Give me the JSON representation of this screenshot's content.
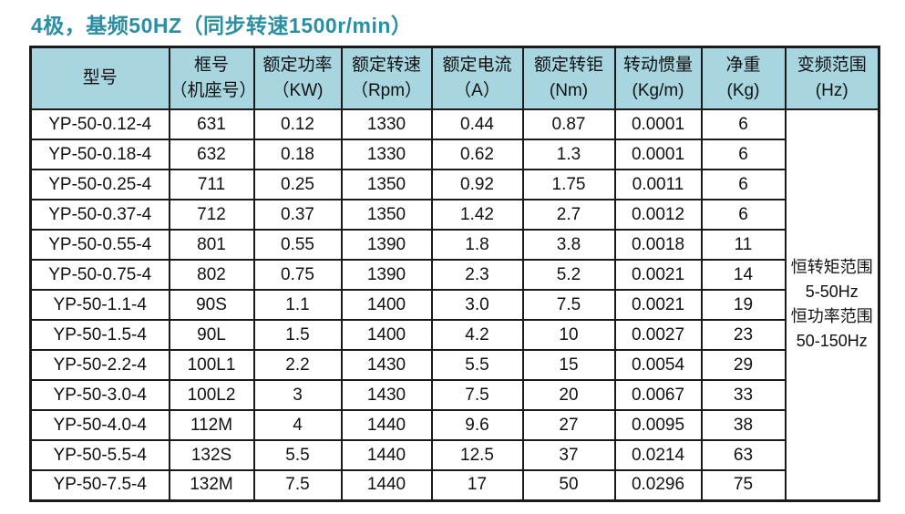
{
  "title": "4极，基频50HZ（同步转速1500r/min）",
  "colors": {
    "title_text": "#2a8fa3",
    "header_bg": "#a7d6e0",
    "border": "#1a1a1a"
  },
  "table": {
    "headers": [
      {
        "line1": "型号",
        "line2": ""
      },
      {
        "line1": "框号",
        "line2": "（机座号）"
      },
      {
        "line1": "额定功率",
        "line2": "（KW)"
      },
      {
        "line1": "额定转速",
        "line2": "（Rpm）"
      },
      {
        "line1": "额定电流",
        "line2": "（A）"
      },
      {
        "line1": "额定转钜",
        "line2": "(Nm)"
      },
      {
        "line1": "转动惯量",
        "line2": "(Kg/m)"
      },
      {
        "line1": "净重",
        "line2": "(Kg)"
      },
      {
        "line1": "变频范围",
        "line2": "(Hz)"
      }
    ],
    "rows": [
      [
        "YP-50-0.12-4",
        "631",
        "0.12",
        "1330",
        "0.44",
        "0.87",
        "0.0001",
        "6"
      ],
      [
        "YP-50-0.18-4",
        "632",
        "0.18",
        "1330",
        "0.62",
        "1.3",
        "0.0001",
        "6"
      ],
      [
        "YP-50-0.25-4",
        "711",
        "0.25",
        "1350",
        "0.92",
        "1.75",
        "0.0011",
        "6"
      ],
      [
        "YP-50-0.37-4",
        "712",
        "0.37",
        "1350",
        "1.42",
        "2.7",
        "0.0012",
        "6"
      ],
      [
        "YP-50-0.55-4",
        "801",
        "0.55",
        "1390",
        "1.8",
        "3.8",
        "0.0018",
        "11"
      ],
      [
        "YP-50-0.75-4",
        "802",
        "0.75",
        "1390",
        "2.3",
        "5.2",
        "0.0021",
        "14"
      ],
      [
        "YP-50-1.1-4",
        "90S",
        "1.1",
        "1400",
        "3.0",
        "7.5",
        "0.0021",
        "19"
      ],
      [
        "YP-50-1.5-4",
        "90L",
        "1.5",
        "1400",
        "4.2",
        "10",
        "0.0027",
        "23"
      ],
      [
        "YP-50-2.2-4",
        "100L1",
        "2.2",
        "1430",
        "5.5",
        "15",
        "0.0054",
        "29"
      ],
      [
        "YP-50-3.0-4",
        "100L2",
        "3",
        "1430",
        "7.5",
        "20",
        "0.0067",
        "33"
      ],
      [
        "YP-50-4.0-4",
        "112M",
        "4",
        "1440",
        "9.6",
        "27",
        "0.0095",
        "38"
      ],
      [
        "YP-50-5.5-4",
        "132S",
        "5.5",
        "1440",
        "12.5",
        "37",
        "0.0214",
        "63"
      ],
      [
        "YP-50-7.5-4",
        "132M",
        "7.5",
        "1440",
        "17",
        "50",
        "0.0296",
        "75"
      ]
    ],
    "freq_range_note": {
      "lines": [
        "恒转矩范围",
        "5-50Hz",
        "恒功率范围",
        "50-150Hz"
      ]
    }
  }
}
